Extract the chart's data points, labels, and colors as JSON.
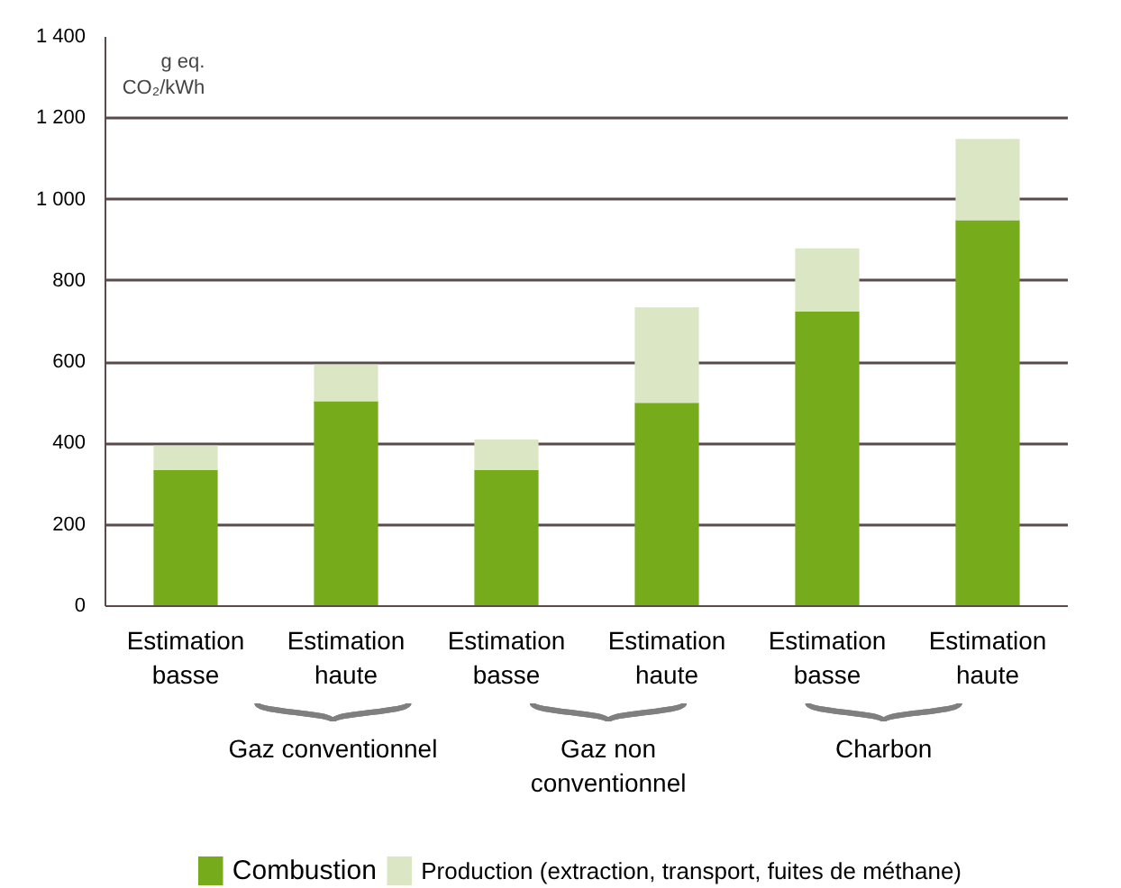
{
  "chart_data": {
    "type": "bar",
    "stacked": true,
    "ylabel": "g eq. CO₂/kWh",
    "categories": [
      "Estimation\nbasse",
      "Estimation\nhaute",
      "Estimation\nbasse",
      "Estimation\nhaute",
      "Estimation\nbasse",
      "Estimation\nhaute"
    ],
    "series": [
      {
        "name": "Combustion",
        "color": "#76ab1c",
        "values": [
          335,
          504,
          335,
          500,
          725,
          949
        ]
      },
      {
        "name": "Production (extraction, transport, fuites de méthane)",
        "color": "#dbe6c4",
        "values": [
          60,
          90,
          75,
          235,
          155,
          200
        ]
      }
    ],
    "ylim": [
      0,
      1400
    ],
    "yticks": [
      0,
      200,
      400,
      600,
      800,
      {
        "value": 1000,
        "label": "1 000"
      },
      {
        "value": 1200,
        "label": "1 200"
      },
      {
        "value": 1400,
        "label": "1 400"
      }
    ],
    "grid": "y",
    "legend": "bottom",
    "annotations": [
      "Gaz conventionnel",
      "Gaz non\nconventionnel",
      "Charbon"
    ]
  }
}
